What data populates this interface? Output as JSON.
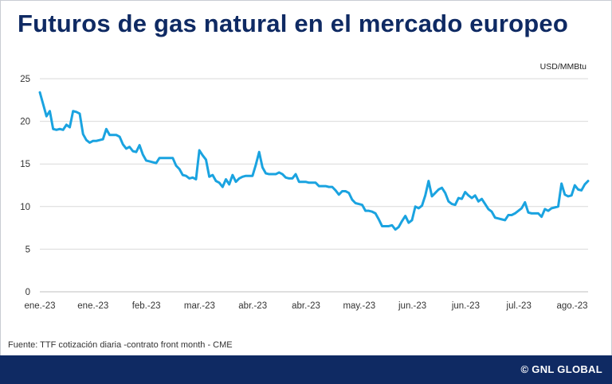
{
  "header": {
    "title": "Futuros de gas natural en el mercado europeo"
  },
  "footer": {
    "source": "Fuente: TTF cotización diaria -contrato front month - CME",
    "brand": "© GNL GLOBAL"
  },
  "colors": {
    "title": "#0f2a63",
    "line": "#1aa3e0",
    "footer_bg": "#0f2a63",
    "grid": "#d9d9d9"
  },
  "chart_data": {
    "type": "line",
    "title": "Futuros de gas natural en el mercado europeo",
    "ylabel": "USD/MMBtu",
    "xlabel": "",
    "ylim": [
      0,
      25
    ],
    "y_ticks": [
      0,
      5,
      10,
      15,
      20,
      25
    ],
    "x_tick_labels": [
      "ene.-23",
      "ene.-23",
      "feb.-23",
      "mar.-23",
      "abr.-23",
      "abr.-23",
      "may.-23",
      "jun.-23",
      "jun.-23",
      "jul.-23",
      "ago.-23"
    ],
    "grid": "horizontal",
    "legend": "none",
    "series": [
      {
        "values": [
          23.4,
          22.0,
          20.6,
          21.2,
          19.1,
          19.0,
          19.1,
          19.0,
          19.6,
          19.3,
          21.2,
          21.1,
          20.9,
          18.5,
          17.8,
          17.5,
          17.7,
          17.7,
          17.8,
          17.9,
          19.1,
          18.4,
          18.4,
          18.4,
          18.2,
          17.3,
          16.8,
          17.0,
          16.5,
          16.4,
          17.2,
          16.1,
          15.4,
          15.3,
          15.2,
          15.1,
          15.7,
          15.7,
          15.7,
          15.7,
          15.7,
          14.8,
          14.4,
          13.7,
          13.6,
          13.3,
          13.4,
          13.2,
          16.6,
          16.0,
          15.5,
          13.5,
          13.7,
          13.0,
          12.8,
          12.3,
          13.2,
          12.6,
          13.7,
          12.9,
          13.3,
          13.5,
          13.6,
          13.6,
          13.6,
          14.9,
          16.4,
          14.6,
          13.9,
          13.8,
          13.8,
          13.8,
          14.0,
          13.8,
          13.4,
          13.3,
          13.3,
          13.8,
          12.9,
          12.9,
          12.9,
          12.8,
          12.8,
          12.8,
          12.4,
          12.4,
          12.4,
          12.3,
          12.3,
          11.9,
          11.4,
          11.8,
          11.8,
          11.6,
          10.8,
          10.4,
          10.3,
          10.2,
          9.5,
          9.5,
          9.4,
          9.2,
          8.5,
          7.7,
          7.7,
          7.7,
          7.8,
          7.3,
          7.6,
          8.3,
          8.9,
          8.1,
          8.4,
          10.0,
          9.8,
          10.1,
          11.3,
          13.0,
          11.2,
          11.6,
          12.0,
          12.2,
          11.6,
          10.6,
          10.3,
          10.2,
          11.0,
          10.9,
          11.7,
          11.3,
          11.0,
          11.3,
          10.6,
          10.9,
          10.3,
          9.7,
          9.4,
          8.7,
          8.6,
          8.5,
          8.4,
          9.0,
          9.0,
          9.2,
          9.5,
          9.8,
          10.5,
          9.3,
          9.2,
          9.2,
          9.2,
          8.8,
          9.7,
          9.5,
          9.8,
          9.9,
          10.0,
          12.7,
          11.4,
          11.2,
          11.3,
          12.5,
          12.0,
          11.9,
          12.6,
          13.0
        ]
      }
    ]
  }
}
